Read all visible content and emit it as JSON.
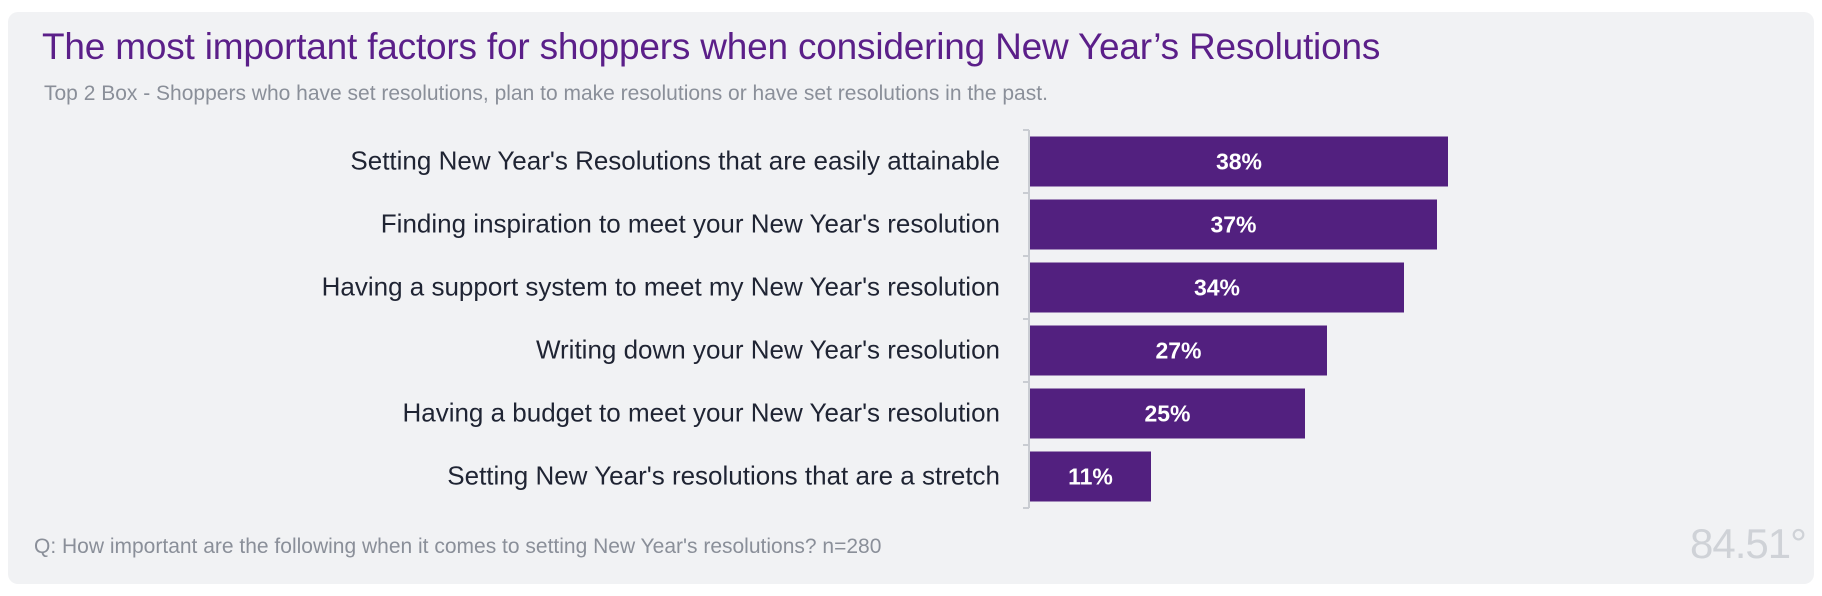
{
  "title": "The most important factors for shoppers when considering New Year’s Resolutions",
  "subtitle": "Top 2 Box - Shoppers who have set resolutions, plan to make resolutions or have set resolutions in the past.",
  "footer": "Q: How important are the following when it comes to setting New Year's resolutions? n=280",
  "logo_text": "84.51°",
  "colors": {
    "bar": "#52207f",
    "title": "#5b1f89",
    "background": "#f1f2f4",
    "axis": "#c9ccd2"
  },
  "chart_data": {
    "type": "bar",
    "orientation": "horizontal",
    "categories": [
      "Setting New Year's Resolutions that are easily attainable",
      "Finding inspiration to meet your New Year's resolution",
      "Having a support system to meet my New Year's resolution",
      "Writing down your New Year's resolution",
      "Having a budget to meet your New Year's resolution",
      "Setting New Year's resolutions that are a stretch"
    ],
    "values": [
      38,
      37,
      34,
      27,
      25,
      11
    ],
    "value_labels": [
      "38%",
      "37%",
      "34%",
      "27%",
      "25%",
      "11%"
    ],
    "unit": "%",
    "xlim": [
      0,
      100
    ],
    "grid": false,
    "legend": false
  }
}
